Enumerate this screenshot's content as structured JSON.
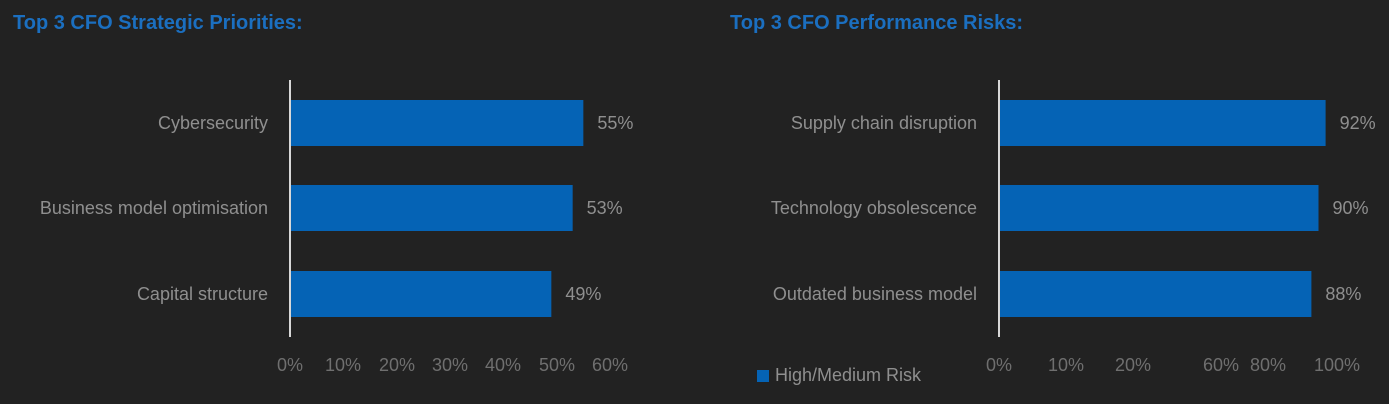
{
  "colors": {
    "bar": "#0563b5",
    "axis": "#d8d8d8"
  },
  "legend": {
    "label": "High/Medium Risk"
  },
  "chart_data": [
    {
      "type": "bar",
      "orientation": "horizontal",
      "title": "Top 3 CFO Strategic Priorities:",
      "categories": [
        "Cybersecurity",
        "Business model optimisation",
        "Capital structure"
      ],
      "values": [
        55,
        53,
        49
      ],
      "value_labels": [
        "55%",
        "53%",
        "49%"
      ],
      "x_ticks": [
        "0%",
        "10%",
        "20%",
        "30%",
        "40%",
        "50%",
        "60%"
      ],
      "xlim": [
        0,
        60
      ]
    },
    {
      "type": "bar",
      "orientation": "horizontal",
      "title": "Top 3 CFO Performance Risks:",
      "categories": [
        "Supply chain disruption",
        "Technology obsolescence",
        "Outdated business model"
      ],
      "series": [
        {
          "name": "High/Medium Risk",
          "values": [
            92,
            90,
            88
          ]
        }
      ],
      "value_labels": [
        "92%",
        "90%",
        "88%"
      ],
      "x_ticks": [
        "0%",
        "10%",
        "20%",
        "60%",
        "80%",
        "100%"
      ],
      "legend": "bottom-left"
    }
  ]
}
